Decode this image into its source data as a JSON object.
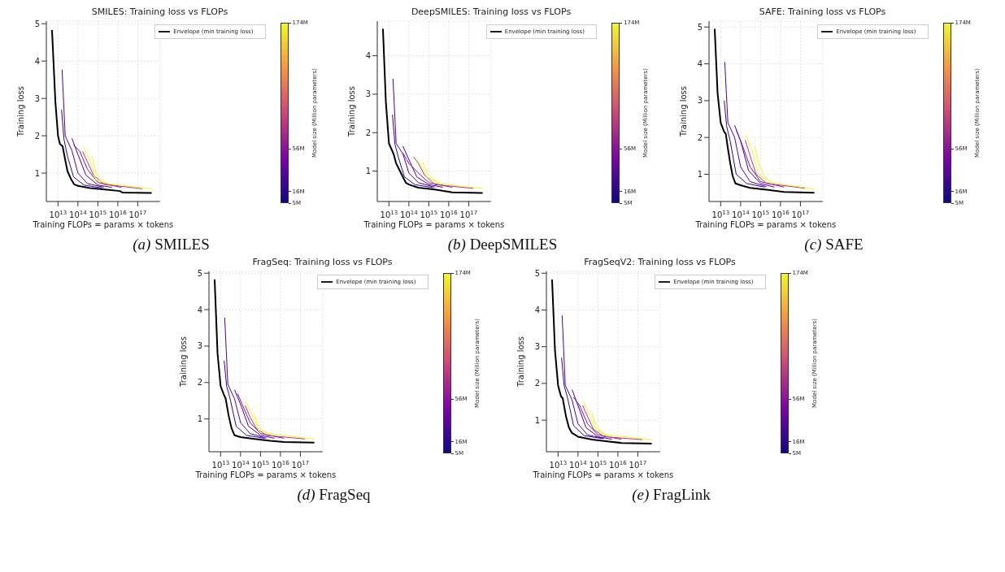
{
  "chart_data": [
    {
      "type": "line",
      "title": "SMILES: Training loss vs FLOPs",
      "xlabel": "Training FLOPs  =  params × tokens",
      "ylabel": "Training loss",
      "clabel": "Model size (Million parameters)",
      "clim": [
        5,
        174
      ],
      "cticks": [
        {
          "value": 5,
          "label": "5M"
        },
        {
          "value": 16,
          "label": "16M"
        },
        {
          "value": 56,
          "label": "56M"
        },
        {
          "value": 174,
          "label": "174M"
        }
      ],
      "log": "x",
      "xlim": [
        2600000000000.0,
        1.3e+18
      ],
      "xticks": [
        {
          "value": 10000000000000.0,
          "label": "10$^{13}$"
        },
        {
          "value": 100000000000000.0,
          "label": "10$^{14}$"
        },
        {
          "value": 1000000000000000.0,
          "label": "10$^{15}$"
        },
        {
          "value": 1e+16,
          "label": "10$^{16}$"
        },
        {
          "value": 1e+17,
          "label": "10$^{17}$"
        }
      ],
      "ylim": [
        0.24,
        5.07
      ],
      "yticks": [
        1,
        2,
        3,
        4,
        5
      ],
      "grid": true,
      "legend": "top right",
      "marker": "none",
      "line_style": "solid",
      "annotations": [
        "(a) SMILES"
      ],
      "series": [
        {
          "color": "#2c0594",
          "x": [
            15000000000000.0,
            20000000000000.0,
            30000000000000.0,
            60000000000000.0,
            200000000000000.0,
            1600000000000000.0
          ],
          "values": [
            2.7,
            1.9,
            1.45,
            0.9,
            0.68,
            0.6
          ]
        },
        {
          "color": "#4a02a0",
          "x": [
            16000000000000.0,
            23000000000000.0,
            50000000000000.0,
            100000000000000.0,
            300000000000000.0,
            2000000000000000.0
          ],
          "values": [
            3.77,
            2.0,
            1.6,
            1.0,
            0.72,
            0.62
          ]
        },
        {
          "color": "#3a049a",
          "x": [
            50000000000000.0,
            100000000000000.0,
            250000000000000.0,
            1000000000000000.0,
            5000000000000000.0
          ],
          "values": [
            1.93,
            1.5,
            0.95,
            0.68,
            0.62
          ]
        },
        {
          "color": "#8b0aa5",
          "x": [
            60000000000000.0,
            120000000000000.0,
            300000000000000.0,
            1000000000000000.0,
            1.5e+16
          ],
          "values": [
            1.75,
            1.6,
            1.1,
            0.75,
            0.62
          ]
        },
        {
          "color": "#b52f8c",
          "x": [
            170000000000000.0,
            300000000000000.0,
            600000000000000.0,
            2000000000000000.0,
            1.7e+17
          ],
          "values": [
            1.58,
            1.3,
            0.95,
            0.7,
            0.58
          ]
        },
        {
          "color": "#f0f921",
          "x": [
            180000000000000.0,
            400000000000000.0,
            800000000000000.0,
            3000000000000000.0,
            5e+17
          ],
          "values": [
            1.72,
            1.35,
            0.82,
            0.72,
            0.58
          ]
        },
        {
          "color": "#f0f921",
          "x": [
            500000000000000.0,
            800000000000000.0,
            1500000000000000.0,
            4000000000000000.0
          ],
          "values": [
            1.45,
            1.0,
            0.8,
            0.7
          ]
        },
        {
          "name": "Envelope (min training loss)",
          "color": "#000000",
          "x": [
            5000000000000.0,
            7400000000000.0,
            10000000000000.0,
            12500000000000.0,
            17000000000000.0,
            24000000000000.0,
            30000000000000.0,
            44000000000000.0,
            64000000000000.0,
            100000000000000.0,
            400000000000000.0,
            3800000000000000.0,
            1.25e+16,
            1.7e+16,
            5e+17
          ],
          "values": [
            4.83,
            2.9,
            2.0,
            1.78,
            1.72,
            1.3,
            1.05,
            0.85,
            0.7,
            0.66,
            0.6,
            0.55,
            0.52,
            0.48,
            0.47
          ]
        }
      ]
    },
    {
      "type": "line",
      "title": "DeepSMILES: Training loss vs FLOPs",
      "xlabel": "Training FLOPs  =  params × tokens",
      "ylabel": "Training loss",
      "clabel": "Model size (Million parameters)",
      "clim": [
        5,
        174
      ],
      "cticks": [
        {
          "value": 5,
          "label": "5M"
        },
        {
          "value": 16,
          "label": "16M"
        },
        {
          "value": 56,
          "label": "56M"
        },
        {
          "value": 174,
          "label": "174M"
        }
      ],
      "log": "x",
      "xlim": [
        2600000000000.0,
        1.3e+18
      ],
      "xticks": [
        {
          "value": 10000000000000.0,
          "label": "10$^{13}$"
        },
        {
          "value": 100000000000000.0,
          "label": "10$^{14}$"
        },
        {
          "value": 1000000000000000.0,
          "label": "10$^{15}$"
        },
        {
          "value": 1e+16,
          "label": "10$^{16}$"
        },
        {
          "value": 1e+17,
          "label": "10$^{17}$"
        }
      ],
      "ylim": [
        0.21,
        4.9
      ],
      "yticks": [
        1,
        2,
        3,
        4
      ],
      "grid": true,
      "legend": "top right",
      "marker": "none",
      "line_style": "solid",
      "annotations": [
        "(b) DeepSMILES"
      ],
      "series": [
        {
          "color": "#2c0594",
          "x": [
            15000000000000.0,
            20000000000000.0,
            30000000000000.0,
            60000000000000.0,
            200000000000000.0,
            1600000000000000.0
          ],
          "values": [
            2.47,
            1.7,
            1.35,
            0.85,
            0.65,
            0.57
          ]
        },
        {
          "color": "#4a02a0",
          "x": [
            16000000000000.0,
            23000000000000.0,
            50000000000000.0,
            100000000000000.0,
            300000000000000.0,
            2000000000000000.0
          ],
          "values": [
            3.4,
            1.72,
            1.45,
            0.95,
            0.7,
            0.58
          ]
        },
        {
          "color": "#3a049a",
          "x": [
            50000000000000.0,
            100000000000000.0,
            250000000000000.0,
            1000000000000000.0,
            5000000000000000.0
          ],
          "values": [
            1.65,
            1.3,
            0.85,
            0.65,
            0.58
          ]
        },
        {
          "color": "#8b0aa5",
          "x": [
            50000000000000.0,
            100000000000000.0,
            300000000000000.0,
            1000000000000000.0,
            1.5e+16
          ],
          "values": [
            1.47,
            1.2,
            0.95,
            0.7,
            0.58
          ]
        },
        {
          "color": "#b52f8c",
          "x": [
            170000000000000.0,
            300000000000000.0,
            600000000000000.0,
            2000000000000000.0,
            1.7e+17
          ],
          "values": [
            1.37,
            1.2,
            0.9,
            0.65,
            0.55
          ]
        },
        {
          "color": "#f0f921",
          "x": [
            200000000000000.0,
            400000000000000.0,
            800000000000000.0,
            3000000000000000.0,
            5e+17
          ],
          "values": [
            1.35,
            1.15,
            0.85,
            0.68,
            0.55
          ]
        },
        {
          "color": "#f0f921",
          "x": [
            500000000000000.0,
            800000000000000.0,
            1500000000000000.0,
            4000000000000000.0
          ],
          "values": [
            1.23,
            0.95,
            0.8,
            0.68
          ]
        },
        {
          "name": "Envelope (min training loss)",
          "color": "#000000",
          "x": [
            5000000000000.0,
            7000000000000.0,
            10000000000000.0,
            17000000000000.0,
            23000000000000.0,
            50000000000000.0,
            70000000000000.0,
            100000000000000.0,
            300000000000000.0,
            2000000000000000.0,
            1.5e+16,
            5e+17
          ],
          "values": [
            4.7,
            2.8,
            1.72,
            1.45,
            1.2,
            0.85,
            0.7,
            0.65,
            0.57,
            0.52,
            0.45,
            0.43
          ]
        }
      ]
    },
    {
      "type": "line",
      "title": "SAFE: Training loss vs FLOPs",
      "xlabel": "Training FLOPs  =  params × tokens",
      "ylabel": "Training loss",
      "clabel": "Model size (Million parameters)",
      "clim": [
        5,
        174
      ],
      "cticks": [
        {
          "value": 5,
          "label": "5M"
        },
        {
          "value": 16,
          "label": "16M"
        },
        {
          "value": 56,
          "label": "56M"
        },
        {
          "value": 174,
          "label": "174M"
        }
      ],
      "log": "x",
      "xlim": [
        2600000000000.0,
        1.3e+18
      ],
      "xticks": [
        {
          "value": 10000000000000.0,
          "label": "10$^{13}$"
        },
        {
          "value": 100000000000000.0,
          "label": "10$^{14}$"
        },
        {
          "value": 1000000000000000.0,
          "label": "10$^{15}$"
        },
        {
          "value": 1e+16,
          "label": "10$^{16}$"
        },
        {
          "value": 1e+17,
          "label": "10$^{17}$"
        }
      ],
      "ylim": [
        0.26,
        5.16
      ],
      "yticks": [
        1,
        2,
        3,
        4,
        5
      ],
      "grid": true,
      "legend": "top right",
      "marker": "none",
      "line_style": "solid",
      "annotations": [
        "(c) SAFE"
      ],
      "series": [
        {
          "color": "#2c0594",
          "x": [
            15000000000000.0,
            20000000000000.0,
            30000000000000.0,
            60000000000000.0,
            200000000000000.0,
            1600000000000000.0
          ],
          "values": [
            3.0,
            2.3,
            1.9,
            1.0,
            0.75,
            0.65
          ]
        },
        {
          "color": "#4a02a0",
          "x": [
            16000000000000.0,
            23000000000000.0,
            50000000000000.0,
            100000000000000.0,
            300000000000000.0,
            2000000000000000.0
          ],
          "values": [
            4.05,
            2.4,
            2.0,
            1.2,
            0.8,
            0.66
          ]
        },
        {
          "color": "#3a049a",
          "x": [
            50000000000000.0,
            100000000000000.0,
            250000000000000.0,
            1000000000000000.0,
            5000000000000000.0
          ],
          "values": [
            2.33,
            1.9,
            1.1,
            0.75,
            0.65
          ]
        },
        {
          "color": "#8b0aa5",
          "x": [
            60000000000000.0,
            120000000000000.0,
            300000000000000.0,
            1000000000000000.0,
            1.5e+16
          ],
          "values": [
            2.2,
            1.8,
            1.2,
            0.8,
            0.65
          ]
        },
        {
          "color": "#b52f8c",
          "x": [
            170000000000000.0,
            300000000000000.0,
            600000000000000.0,
            2000000000000000.0,
            1.7e+17
          ],
          "values": [
            1.93,
            1.5,
            1.0,
            0.75,
            0.62
          ]
        },
        {
          "color": "#f0f921",
          "x": [
            180000000000000.0,
            400000000000000.0,
            800000000000000.0,
            3000000000000000.0,
            5e+17
          ],
          "values": [
            2.08,
            1.6,
            1.0,
            0.78,
            0.6
          ]
        },
        {
          "color": "#f0f921",
          "x": [
            500000000000000.0,
            800000000000000.0,
            1500000000000000.0,
            4000000000000000.0
          ],
          "values": [
            1.77,
            1.3,
            0.95,
            0.75
          ]
        },
        {
          "name": "Envelope (min training loss)",
          "color": "#000000",
          "x": [
            5000000000000.0,
            7000000000000.0,
            10000000000000.0,
            15000000000000.0,
            18000000000000.0,
            23000000000000.0,
            30000000000000.0,
            40000000000000.0,
            55000000000000.0,
            100000000000000.0,
            300000000000000.0,
            2000000000000000.0,
            1.5e+16,
            5e+17
          ],
          "values": [
            4.95,
            3.2,
            2.4,
            2.15,
            2.1,
            1.7,
            1.3,
            0.95,
            0.75,
            0.7,
            0.63,
            0.58,
            0.52,
            0.5
          ]
        }
      ]
    },
    {
      "type": "line",
      "title": "FragSeq: Training loss vs FLOPs",
      "xlabel": "Training FLOPs  =  params × tokens",
      "ylabel": "Training loss",
      "clabel": "Model size (Million parameters)",
      "clim": [
        5,
        174
      ],
      "cticks": [
        {
          "value": 5,
          "label": "5M"
        },
        {
          "value": 16,
          "label": "16M"
        },
        {
          "value": 56,
          "label": "56M"
        },
        {
          "value": 174,
          "label": "174M"
        }
      ],
      "log": "x",
      "xlim": [
        2600000000000.0,
        1.3e+18
      ],
      "xticks": [
        {
          "value": 10000000000000.0,
          "label": "10$^{13}$"
        },
        {
          "value": 100000000000000.0,
          "label": "10$^{14}$"
        },
        {
          "value": 1000000000000000.0,
          "label": "10$^{15}$"
        },
        {
          "value": 1e+16,
          "label": "10$^{16}$"
        },
        {
          "value": 1e+17,
          "label": "10$^{17}$"
        }
      ],
      "ylim": [
        0.1,
        5.05
      ],
      "yticks": [
        1,
        2,
        3,
        4,
        5
      ],
      "grid": true,
      "legend": "top right",
      "marker": "none",
      "line_style": "solid",
      "annotations": [
        "(d) FragSeq"
      ],
      "series": [
        {
          "color": "#2c0594",
          "x": [
            15000000000000.0,
            20000000000000.0,
            30000000000000.0,
            60000000000000.0,
            200000000000000.0,
            1600000000000000.0
          ],
          "values": [
            2.6,
            1.9,
            1.55,
            0.8,
            0.55,
            0.47
          ]
        },
        {
          "color": "#4a02a0",
          "x": [
            16000000000000.0,
            23000000000000.0,
            50000000000000.0,
            100000000000000.0,
            300000000000000.0,
            2000000000000000.0
          ],
          "values": [
            3.78,
            1.95,
            1.55,
            0.9,
            0.6,
            0.47
          ]
        },
        {
          "color": "#3a049a",
          "x": [
            50000000000000.0,
            100000000000000.0,
            250000000000000.0,
            1000000000000000.0,
            5000000000000000.0
          ],
          "values": [
            1.8,
            1.4,
            0.8,
            0.55,
            0.47
          ]
        },
        {
          "color": "#8b0aa5",
          "x": [
            70000000000000.0,
            120000000000000.0,
            300000000000000.0,
            1000000000000000.0,
            1.5e+16
          ],
          "values": [
            1.7,
            1.4,
            0.9,
            0.6,
            0.47
          ]
        },
        {
          "color": "#b52f8c",
          "x": [
            170000000000000.0,
            300000000000000.0,
            600000000000000.0,
            2000000000000000.0,
            1.7e+17
          ],
          "values": [
            1.37,
            1.05,
            0.75,
            0.55,
            0.45
          ]
        },
        {
          "color": "#f0f921",
          "x": [
            170000000000000.0,
            400000000000000.0,
            800000000000000.0,
            3000000000000000.0,
            5e+17
          ],
          "values": [
            1.5,
            1.1,
            0.7,
            0.6,
            0.45
          ]
        },
        {
          "color": "#f0f921",
          "x": [
            500000000000000.0,
            800000000000000.0,
            1500000000000000.0,
            4000000000000000.0
          ],
          "values": [
            1.13,
            0.8,
            0.65,
            0.55
          ]
        },
        {
          "name": "Envelope (min training loss)",
          "color": "#000000",
          "x": [
            5000000000000.0,
            7000000000000.0,
            10000000000000.0,
            15000000000000.0,
            18000000000000.0,
            25000000000000.0,
            35000000000000.0,
            50000000000000.0,
            100000000000000.0,
            500000000000000.0,
            3000000000000000.0,
            1.5e+16,
            5e+17
          ],
          "values": [
            4.83,
            2.8,
            1.9,
            1.65,
            1.55,
            1.1,
            0.75,
            0.55,
            0.5,
            0.45,
            0.4,
            0.37,
            0.35
          ]
        }
      ]
    },
    {
      "type": "line",
      "title": "FragSeqV2: Training loss vs FLOPs",
      "xlabel": "Training FLOPs  =  params × tokens",
      "ylabel": "Training loss",
      "clabel": "Model size (Million parameters)",
      "clim": [
        5,
        174
      ],
      "cticks": [
        {
          "value": 5,
          "label": "5M"
        },
        {
          "value": 16,
          "label": "16M"
        },
        {
          "value": 56,
          "label": "56M"
        },
        {
          "value": 174,
          "label": "174M"
        }
      ],
      "log": "x",
      "xlim": [
        2600000000000.0,
        1.3e+18
      ],
      "xticks": [
        {
          "value": 10000000000000.0,
          "label": "10$^{13}$"
        },
        {
          "value": 100000000000000.0,
          "label": "10$^{14}$"
        },
        {
          "value": 1000000000000000.0,
          "label": "10$^{15}$"
        },
        {
          "value": 1e+16,
          "label": "10$^{16}$"
        },
        {
          "value": 1e+17,
          "label": "10$^{17}$"
        }
      ],
      "ylim": [
        0.14,
        5.05
      ],
      "yticks": [
        1,
        2,
        3,
        4,
        5
      ],
      "grid": true,
      "legend": "top right",
      "marker": "none",
      "line_style": "solid",
      "annotations": [
        "(e) FragLink"
      ],
      "series": [
        {
          "color": "#2c0594",
          "x": [
            15000000000000.0,
            20000000000000.0,
            30000000000000.0,
            60000000000000.0,
            200000000000000.0,
            1600000000000000.0
          ],
          "values": [
            2.7,
            1.95,
            1.6,
            0.85,
            0.58,
            0.5
          ]
        },
        {
          "color": "#4a02a0",
          "x": [
            16000000000000.0,
            23000000000000.0,
            50000000000000.0,
            100000000000000.0,
            300000000000000.0,
            2000000000000000.0
          ],
          "values": [
            3.85,
            1.95,
            1.55,
            0.9,
            0.6,
            0.5
          ]
        },
        {
          "color": "#3a049a",
          "x": [
            50000000000000.0,
            100000000000000.0,
            250000000000000.0,
            1000000000000000.0,
            5000000000000000.0
          ],
          "values": [
            1.83,
            1.4,
            0.8,
            0.55,
            0.48
          ]
        },
        {
          "color": "#8b0aa5",
          "x": [
            60000000000000.0,
            120000000000000.0,
            300000000000000.0,
            1000000000000000.0,
            1.5e+16
          ],
          "values": [
            1.62,
            1.4,
            0.9,
            0.6,
            0.48
          ]
        },
        {
          "color": "#b52f8c",
          "x": [
            170000000000000.0,
            300000000000000.0,
            600000000000000.0,
            2000000000000000.0,
            1.7e+17
          ],
          "values": [
            1.4,
            1.1,
            0.75,
            0.55,
            0.47
          ]
        },
        {
          "color": "#f0f921",
          "x": [
            180000000000000.0,
            400000000000000.0,
            800000000000000.0,
            3000000000000000.0,
            5e+17
          ],
          "values": [
            1.52,
            1.1,
            0.75,
            0.6,
            0.47
          ]
        },
        {
          "color": "#f0f921",
          "x": [
            500000000000000.0,
            800000000000000.0,
            1500000000000000.0,
            4000000000000000.0
          ],
          "values": [
            1.2,
            0.85,
            0.65,
            0.55
          ]
        },
        {
          "name": "Envelope (min training loss)",
          "color": "#000000",
          "x": [
            5000000000000.0,
            7000000000000.0,
            10000000000000.0,
            14000000000000.0,
            17000000000000.0,
            25000000000000.0,
            35000000000000.0,
            50000000000000.0,
            100000000000000.0,
            500000000000000.0,
            3000000000000000.0,
            1.5e+16,
            5e+17
          ],
          "values": [
            4.83,
            2.9,
            1.95,
            1.65,
            1.6,
            1.1,
            0.8,
            0.65,
            0.55,
            0.47,
            0.42,
            0.38,
            0.36
          ]
        }
      ]
    }
  ]
}
